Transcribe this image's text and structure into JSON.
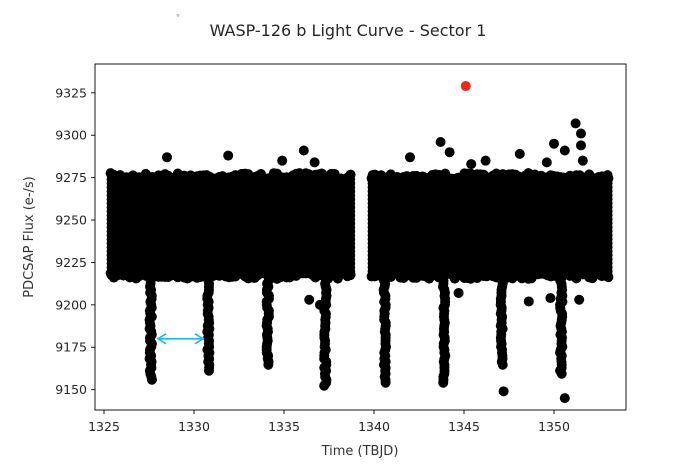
{
  "chart_data": {
    "type": "scatter",
    "title": "WASP-126 b Light Curve - Sector 1",
    "xlabel": "Time (TBJD)",
    "ylabel": "PDCSAP Flux (e-/s)",
    "xlim": [
      1324.5,
      1354.0
    ],
    "ylim": [
      9138,
      9342
    ],
    "xticks": [
      1325,
      1330,
      1335,
      1340,
      1345,
      1350
    ],
    "yticks": [
      9150,
      9175,
      9200,
      9225,
      9250,
      9275,
      9300,
      9325
    ],
    "grid": false,
    "segments": [
      {
        "x_start": 1325.2,
        "x_end": 1338.9,
        "flux_low": 9213,
        "flux_high": 9280
      },
      {
        "x_start": 1339.7,
        "x_end": 1353.2,
        "flux_low": 9213,
        "flux_high": 9280
      }
    ],
    "transits": [
      {
        "time": 1327.6,
        "min_flux": 9155
      },
      {
        "time": 1330.8,
        "min_flux": 9160
      },
      {
        "time": 1334.1,
        "min_flux": 9163
      },
      {
        "time": 1337.3,
        "min_flux": 9151
      },
      {
        "time": 1340.6,
        "min_flux": 9153
      },
      {
        "time": 1343.9,
        "min_flux": 9154
      },
      {
        "time": 1347.1,
        "min_flux": 9163
      },
      {
        "time": 1350.4,
        "min_flux": 9159
      }
    ],
    "outliers": [
      {
        "x": 1328.5,
        "y": 9287
      },
      {
        "x": 1331.9,
        "y": 9288
      },
      {
        "x": 1334.9,
        "y": 9285
      },
      {
        "x": 1336.1,
        "y": 9291
      },
      {
        "x": 1336.4,
        "y": 9203
      },
      {
        "x": 1337.0,
        "y": 9200
      },
      {
        "x": 1336.7,
        "y": 9284
      },
      {
        "x": 1343.7,
        "y": 9296
      },
      {
        "x": 1344.2,
        "y": 9290
      },
      {
        "x": 1345.4,
        "y": 9283
      },
      {
        "x": 1346.2,
        "y": 9285
      },
      {
        "x": 1342.0,
        "y": 9287
      },
      {
        "x": 1348.1,
        "y": 9289
      },
      {
        "x": 1348.6,
        "y": 9202
      },
      {
        "x": 1349.8,
        "y": 9204
      },
      {
        "x": 1349.6,
        "y": 9284
      },
      {
        "x": 1350.0,
        "y": 9295
      },
      {
        "x": 1350.6,
        "y": 9291
      },
      {
        "x": 1351.2,
        "y": 9307
      },
      {
        "x": 1351.5,
        "y": 9301
      },
      {
        "x": 1351.5,
        "y": 9294
      },
      {
        "x": 1351.6,
        "y": 9285
      },
      {
        "x": 1351.4,
        "y": 9203
      },
      {
        "x": 1347.2,
        "y": 9149
      },
      {
        "x": 1350.6,
        "y": 9145
      },
      {
        "x": 1344.7,
        "y": 9207
      }
    ],
    "highlight_point": {
      "x": 1345.1,
      "y": 9329,
      "color": "#e8291c"
    },
    "point_color": "#000000",
    "annotation_arrow": {
      "x_from": 1328.0,
      "x_to": 1330.5,
      "y": 9180,
      "color": "#1fb6e6"
    }
  }
}
